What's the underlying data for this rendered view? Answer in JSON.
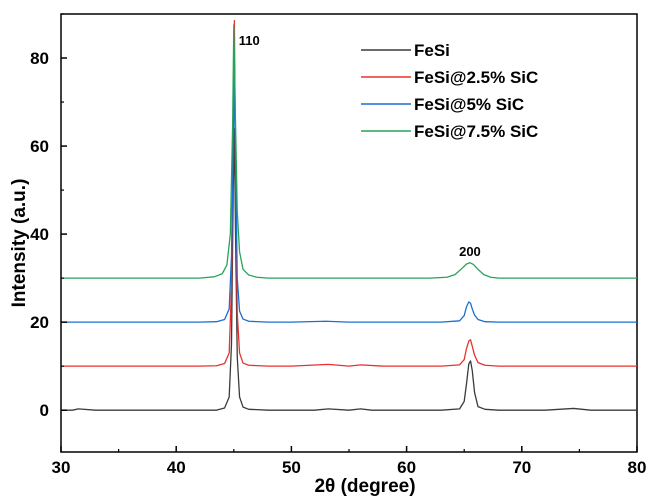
{
  "chart_data": {
    "type": "line",
    "title": "",
    "xlabel": "2θ (degree)",
    "ylabel": "Intensity (a.u.)",
    "xlim": [
      30,
      80
    ],
    "ylim": [
      -9.5,
      90
    ],
    "x_ticks": [
      30,
      40,
      50,
      60,
      70,
      80
    ],
    "y_ticks": [
      0,
      20,
      40,
      60,
      80
    ],
    "grid": false,
    "legend_position": "top-right",
    "annotations": [
      {
        "text": "110",
        "x": 45.0,
        "y": 83
      },
      {
        "text": "200",
        "x": 65.5,
        "y": 35
      }
    ],
    "series": [
      {
        "name": "FeSi",
        "color": "#3b3b3b",
        "points": [
          [
            30,
            0
          ],
          [
            31,
            0
          ],
          [
            31.5,
            0.3
          ],
          [
            33,
            0
          ],
          [
            35,
            0
          ],
          [
            38,
            0
          ],
          [
            40,
            0
          ],
          [
            42,
            0
          ],
          [
            43.5,
            0
          ],
          [
            44.2,
            0.5
          ],
          [
            44.6,
            3
          ],
          [
            44.8,
            15
          ],
          [
            44.95,
            50
          ],
          [
            45.05,
            64
          ],
          [
            45.15,
            40
          ],
          [
            45.3,
            12
          ],
          [
            45.5,
            3
          ],
          [
            45.8,
            0.7
          ],
          [
            46.3,
            0.2
          ],
          [
            48,
            0
          ],
          [
            50,
            0
          ],
          [
            52,
            0
          ],
          [
            53.2,
            0.3
          ],
          [
            55,
            0
          ],
          [
            56,
            0.3
          ],
          [
            57,
            0
          ],
          [
            60,
            0
          ],
          [
            63,
            0
          ],
          [
            64.6,
            0.3
          ],
          [
            65,
            2
          ],
          [
            65.2,
            6
          ],
          [
            65.4,
            10.5
          ],
          [
            65.55,
            11.2
          ],
          [
            65.7,
            9
          ],
          [
            65.9,
            4
          ],
          [
            66.2,
            0.8
          ],
          [
            66.8,
            0.2
          ],
          [
            68,
            0
          ],
          [
            70,
            0
          ],
          [
            72,
            0
          ],
          [
            74.5,
            0.4
          ],
          [
            76,
            0
          ],
          [
            78,
            0
          ],
          [
            80,
            0
          ]
        ]
      },
      {
        "name": "FeSi@2.5% SiC",
        "color": "#e8322f",
        "points": [
          [
            30,
            10
          ],
          [
            32,
            10
          ],
          [
            35,
            10
          ],
          [
            38,
            10
          ],
          [
            40,
            10
          ],
          [
            42,
            10
          ],
          [
            43.5,
            10.1
          ],
          [
            44.2,
            10.6
          ],
          [
            44.6,
            13
          ],
          [
            44.8,
            28
          ],
          [
            44.95,
            65
          ],
          [
            45.05,
            88.5
          ],
          [
            45.15,
            55
          ],
          [
            45.3,
            22
          ],
          [
            45.5,
            13
          ],
          [
            45.8,
            10.7
          ],
          [
            46.3,
            10.2
          ],
          [
            48,
            10
          ],
          [
            50,
            10
          ],
          [
            53.2,
            10.4
          ],
          [
            55,
            10
          ],
          [
            56,
            10.3
          ],
          [
            58,
            10
          ],
          [
            60,
            10
          ],
          [
            63,
            10
          ],
          [
            64.6,
            10.3
          ],
          [
            65,
            11.5
          ],
          [
            65.2,
            14
          ],
          [
            65.4,
            15.7
          ],
          [
            65.55,
            16
          ],
          [
            65.7,
            14.5
          ],
          [
            65.9,
            12.5
          ],
          [
            66.2,
            10.8
          ],
          [
            66.8,
            10.2
          ],
          [
            68,
            10
          ],
          [
            70,
            10
          ],
          [
            75,
            10
          ],
          [
            80,
            10
          ]
        ]
      },
      {
        "name": "FeSi@5% SiC",
        "color": "#1a6fd4",
        "points": [
          [
            30,
            20
          ],
          [
            32,
            20
          ],
          [
            35,
            20
          ],
          [
            38,
            20
          ],
          [
            40,
            20
          ],
          [
            42,
            20
          ],
          [
            43.5,
            20.1
          ],
          [
            44.2,
            20.6
          ],
          [
            44.6,
            23
          ],
          [
            44.8,
            35
          ],
          [
            44.95,
            60
          ],
          [
            45.05,
            75
          ],
          [
            45.15,
            58
          ],
          [
            45.3,
            30
          ],
          [
            45.5,
            22.5
          ],
          [
            45.8,
            20.7
          ],
          [
            46.3,
            20.2
          ],
          [
            48,
            20
          ],
          [
            50,
            20
          ],
          [
            53,
            20.2
          ],
          [
            55,
            20
          ],
          [
            60,
            20
          ],
          [
            63,
            20
          ],
          [
            64.6,
            20.3
          ],
          [
            65,
            21.5
          ],
          [
            65.2,
            23.5
          ],
          [
            65.4,
            24.6
          ],
          [
            65.55,
            24.3
          ],
          [
            65.7,
            23
          ],
          [
            65.9,
            21.6
          ],
          [
            66.2,
            20.6
          ],
          [
            66.8,
            20.1
          ],
          [
            68,
            20
          ],
          [
            70,
            20
          ],
          [
            75,
            20
          ],
          [
            80,
            20
          ]
        ]
      },
      {
        "name": "FeSi@7.5% SiC",
        "color": "#27a35a",
        "points": [
          [
            30,
            30
          ],
          [
            32,
            30
          ],
          [
            35,
            30
          ],
          [
            38,
            30
          ],
          [
            40,
            30
          ],
          [
            42,
            30
          ],
          [
            43.3,
            30.3
          ],
          [
            44,
            31
          ],
          [
            44.4,
            33
          ],
          [
            44.7,
            40
          ],
          [
            44.9,
            65
          ],
          [
            45.0,
            87.5
          ],
          [
            45.1,
            72
          ],
          [
            45.3,
            45
          ],
          [
            45.5,
            36
          ],
          [
            45.8,
            32
          ],
          [
            46.3,
            30.7
          ],
          [
            47,
            30.2
          ],
          [
            48,
            30
          ],
          [
            50,
            30
          ],
          [
            55,
            30
          ],
          [
            60,
            30
          ],
          [
            62,
            30
          ],
          [
            63.5,
            30.2
          ],
          [
            64.2,
            30.8
          ],
          [
            64.8,
            32.2
          ],
          [
            65.2,
            33.2
          ],
          [
            65.5,
            33.5
          ],
          [
            65.8,
            33.1
          ],
          [
            66.2,
            32
          ],
          [
            66.7,
            30.8
          ],
          [
            67.3,
            30.2
          ],
          [
            68,
            30
          ],
          [
            70,
            30
          ],
          [
            75,
            30
          ],
          [
            80,
            30
          ]
        ]
      }
    ]
  }
}
